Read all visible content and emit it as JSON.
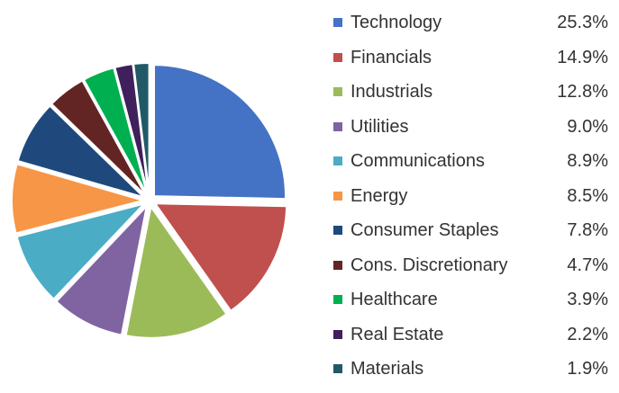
{
  "chart_data": {
    "type": "pie",
    "title": "",
    "legend_position": "right",
    "categories": [
      "Technology",
      "Financials",
      "Industrials",
      "Utilities",
      "Communications",
      "Energy",
      "Consumer Staples",
      "Cons. Discretionary",
      "Healthcare",
      "Real Estate",
      "Materials"
    ],
    "values": [
      25.3,
      14.9,
      12.8,
      9.0,
      8.9,
      8.5,
      7.8,
      4.7,
      3.9,
      2.2,
      1.9
    ],
    "value_labels": [
      "25.3%",
      "14.9%",
      "12.8%",
      "9.0%",
      "8.9%",
      "8.5%",
      "7.8%",
      "4.7%",
      "3.9%",
      "2.2%",
      "1.9%"
    ],
    "colors": [
      "#4472C4",
      "#C0504D",
      "#9BBB59",
      "#8064A2",
      "#4BACC6",
      "#F79646",
      "#1F497D",
      "#632523",
      "#00B050",
      "#3F1F5C",
      "#215967"
    ]
  }
}
